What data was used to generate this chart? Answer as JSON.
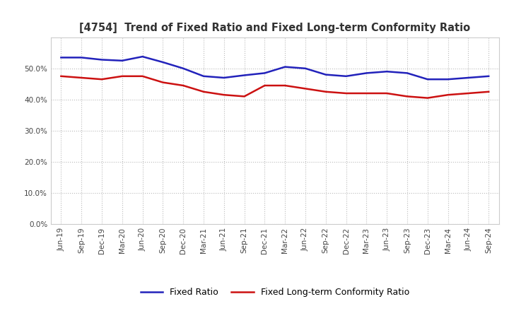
{
  "title": "[4754]  Trend of Fixed Ratio and Fixed Long-term Conformity Ratio",
  "x_labels": [
    "Jun-19",
    "Sep-19",
    "Dec-19",
    "Mar-20",
    "Jun-20",
    "Sep-20",
    "Dec-20",
    "Mar-21",
    "Jun-21",
    "Sep-21",
    "Dec-21",
    "Mar-22",
    "Jun-22",
    "Sep-22",
    "Dec-22",
    "Mar-23",
    "Jun-23",
    "Sep-23",
    "Dec-23",
    "Mar-24",
    "Jun-24",
    "Sep-24"
  ],
  "fixed_ratio": [
    53.5,
    53.5,
    52.8,
    52.5,
    53.8,
    52.0,
    50.0,
    47.5,
    47.0,
    47.8,
    48.5,
    50.5,
    50.0,
    48.0,
    47.5,
    48.5,
    49.0,
    48.5,
    46.5,
    46.5,
    47.0,
    47.5
  ],
  "fixed_lt_ratio": [
    47.5,
    47.0,
    46.5,
    47.5,
    47.5,
    45.5,
    44.5,
    42.5,
    41.5,
    41.0,
    44.5,
    44.5,
    43.5,
    42.5,
    42.0,
    42.0,
    42.0,
    41.0,
    40.5,
    41.5,
    42.0,
    42.5
  ],
  "fixed_ratio_color": "#2222bb",
  "fixed_lt_ratio_color": "#cc1111",
  "background_color": "#ffffff",
  "grid_color": "#bbbbbb",
  "ylim": [
    0,
    60
  ],
  "yticks": [
    0,
    10,
    20,
    30,
    40,
    50
  ],
  "title_color": "#333333",
  "legend_fixed_ratio": "Fixed Ratio",
  "legend_fixed_lt_ratio": "Fixed Long-term Conformity Ratio"
}
